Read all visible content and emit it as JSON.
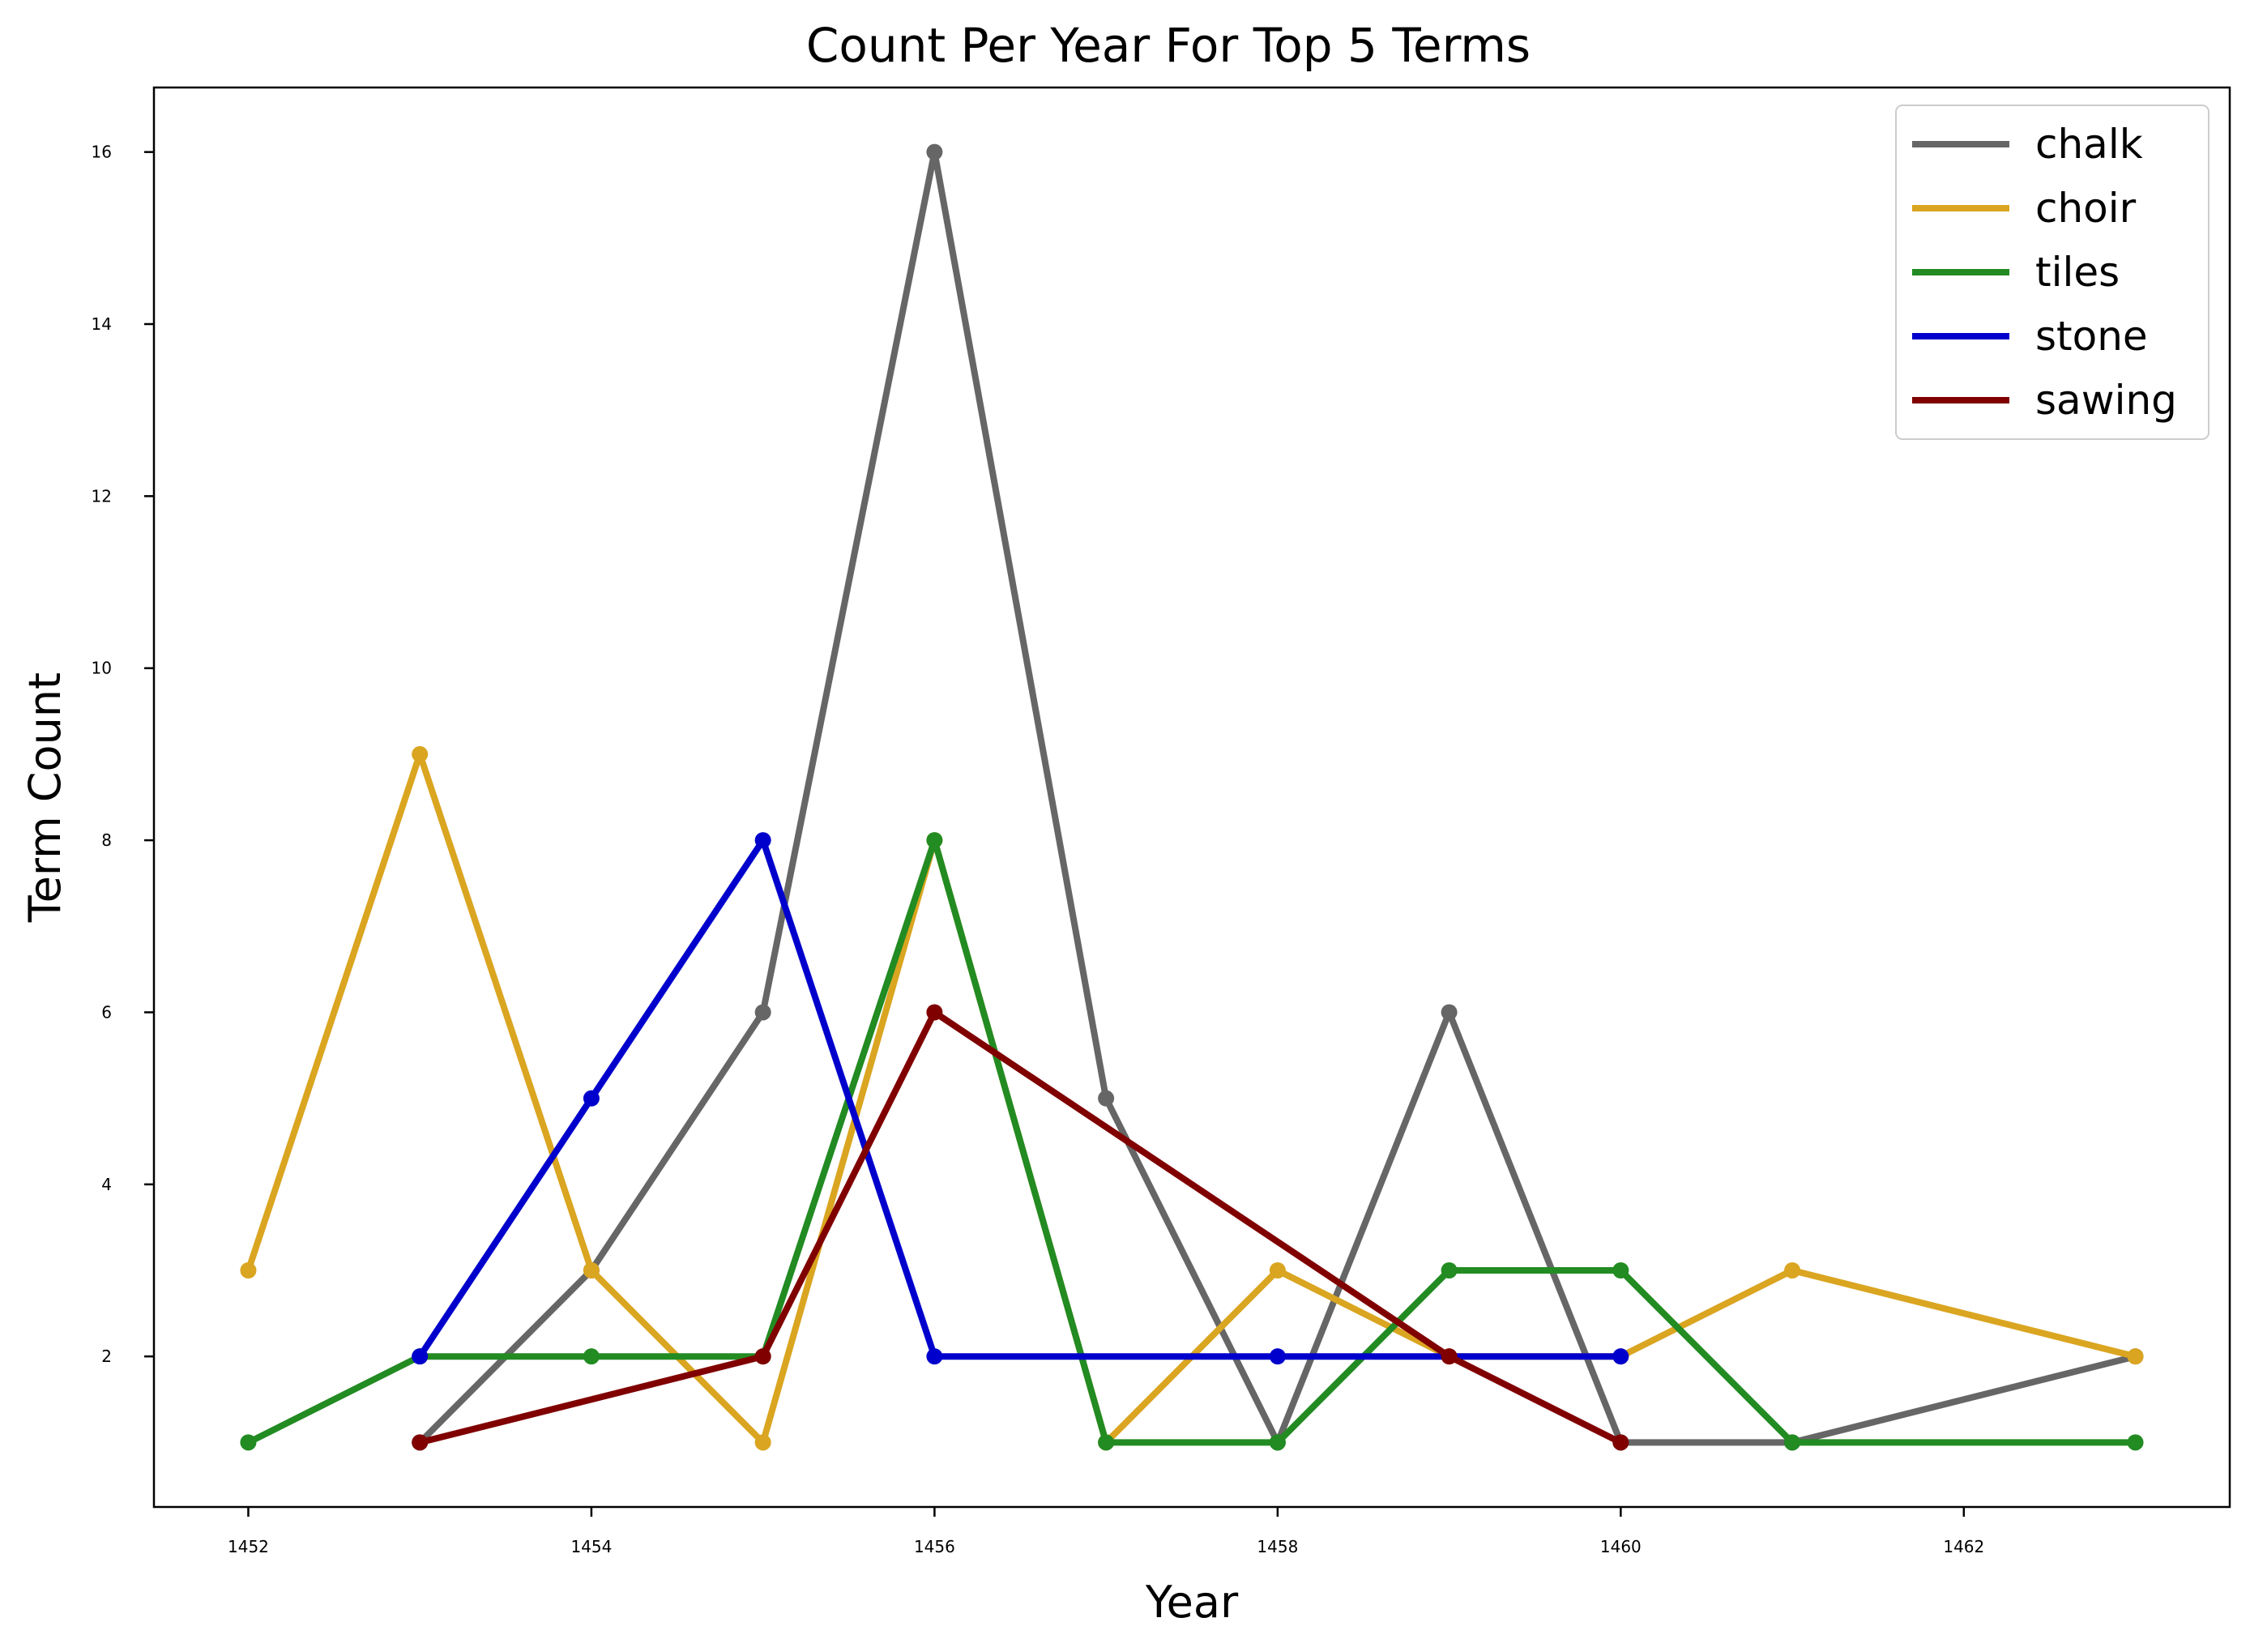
{
  "chart_data": {
    "type": "line",
    "title": "Count Per Year For Top 5 Terms",
    "xlabel": "Year",
    "ylabel": "Term Count",
    "xlim": [
      1451.45,
      1463.55
    ],
    "ylim": [
      0.25,
      16.75
    ],
    "xticks": [
      1452,
      1454,
      1456,
      1458,
      1460,
      1462
    ],
    "yticks": [
      2,
      4,
      6,
      8,
      10,
      12,
      14,
      16
    ],
    "grid": false,
    "legend_position": "top-right",
    "series": [
      {
        "name": "chalk",
        "color": "#666666",
        "x": [
          1453,
          1454,
          1455,
          1456,
          1457,
          1458,
          1459,
          1460,
          1461,
          1463
        ],
        "y": [
          1,
          3,
          6,
          16,
          5,
          1,
          6,
          1,
          1,
          2
        ]
      },
      {
        "name": "choir",
        "color": "#DAA520",
        "x": [
          1452,
          1453,
          1454,
          1455,
          1456,
          1457,
          1458,
          1459,
          1460,
          1461,
          1463
        ],
        "y": [
          3,
          9,
          3,
          1,
          8,
          1,
          3,
          2,
          2,
          3,
          2
        ]
      },
      {
        "name": "tiles",
        "color": "#228B22",
        "x": [
          1452,
          1453,
          1454,
          1455,
          1456,
          1457,
          1458,
          1459,
          1460,
          1461,
          1463
        ],
        "y": [
          1,
          2,
          2,
          2,
          8,
          1,
          1,
          3,
          3,
          1,
          1
        ]
      },
      {
        "name": "stone",
        "color": "#0000CD",
        "x": [
          1453,
          1454,
          1455,
          1456,
          1458,
          1460
        ],
        "y": [
          2,
          5,
          8,
          2,
          2,
          2
        ]
      },
      {
        "name": "sawing",
        "color": "#800000",
        "x": [
          1453,
          1455,
          1456,
          1459,
          1460
        ],
        "y": [
          1,
          2,
          6,
          2,
          1
        ]
      }
    ]
  }
}
